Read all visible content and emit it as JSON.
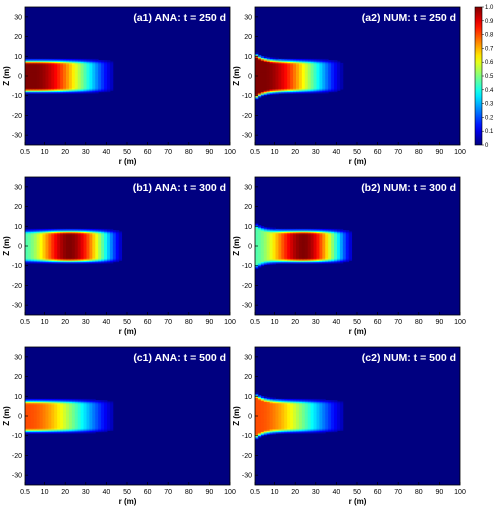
{
  "chart_data": {
    "type": "heatmap",
    "colormap": "jet",
    "axes": {
      "xlabel": "r (m)",
      "ylabel": "Z (m)",
      "xlim": [
        0.5,
        100
      ],
      "ylim": [
        -35,
        35
      ],
      "xticks": [
        "0.5",
        "10",
        "20",
        "30",
        "40",
        "50",
        "60",
        "70",
        "80",
        "90",
        "100"
      ],
      "yticks": [
        "30",
        "20",
        "10",
        "0",
        "-10",
        "-20",
        "-30"
      ]
    },
    "colorbar": {
      "range": [
        0,
        1
      ],
      "ticks": [
        "1.0",
        "0.9",
        "0.8",
        "0.7",
        "0.6",
        "0.5",
        "0.4",
        "0.3",
        "0.2",
        "0.1",
        "0"
      ]
    },
    "panels": [
      {
        "title": "(a1) ANA: t = 250 d",
        "model": "ANA",
        "t": 250,
        "half_thickness": 8,
        "peak_value": 1.0,
        "peak_r": 5,
        "front_r": 35,
        "inner_low": 1.0
      },
      {
        "title": "(a2) NUM: t = 250 d",
        "model": "NUM",
        "t": 250,
        "half_thickness": 8,
        "peak_value": 1.0,
        "peak_r": 5,
        "front_r": 34,
        "inner_low": 1.0
      },
      {
        "title": "(b1) ANA: t = 300 d",
        "model": "ANA",
        "t": 300,
        "half_thickness": 8,
        "peak_value": 1.0,
        "peak_r": 22,
        "front_r": 38,
        "inner_low": 0.45
      },
      {
        "title": "(b2) NUM: t = 300 d",
        "model": "NUM",
        "t": 300,
        "half_thickness": 8,
        "peak_value": 1.0,
        "peak_r": 24,
        "front_r": 38,
        "inner_low": 0.45
      },
      {
        "title": "(c1) ANA: t = 500 d",
        "model": "ANA",
        "t": 500,
        "half_thickness": 8,
        "peak_value": 0.8,
        "peak_r": 2,
        "front_r": 36,
        "inner_low": 0.8
      },
      {
        "title": "(c2) NUM: t = 500 d",
        "model": "NUM",
        "t": 500,
        "half_thickness": 8,
        "peak_value": 0.8,
        "peak_r": 2,
        "front_r": 36,
        "inner_low": 0.8
      }
    ]
  }
}
